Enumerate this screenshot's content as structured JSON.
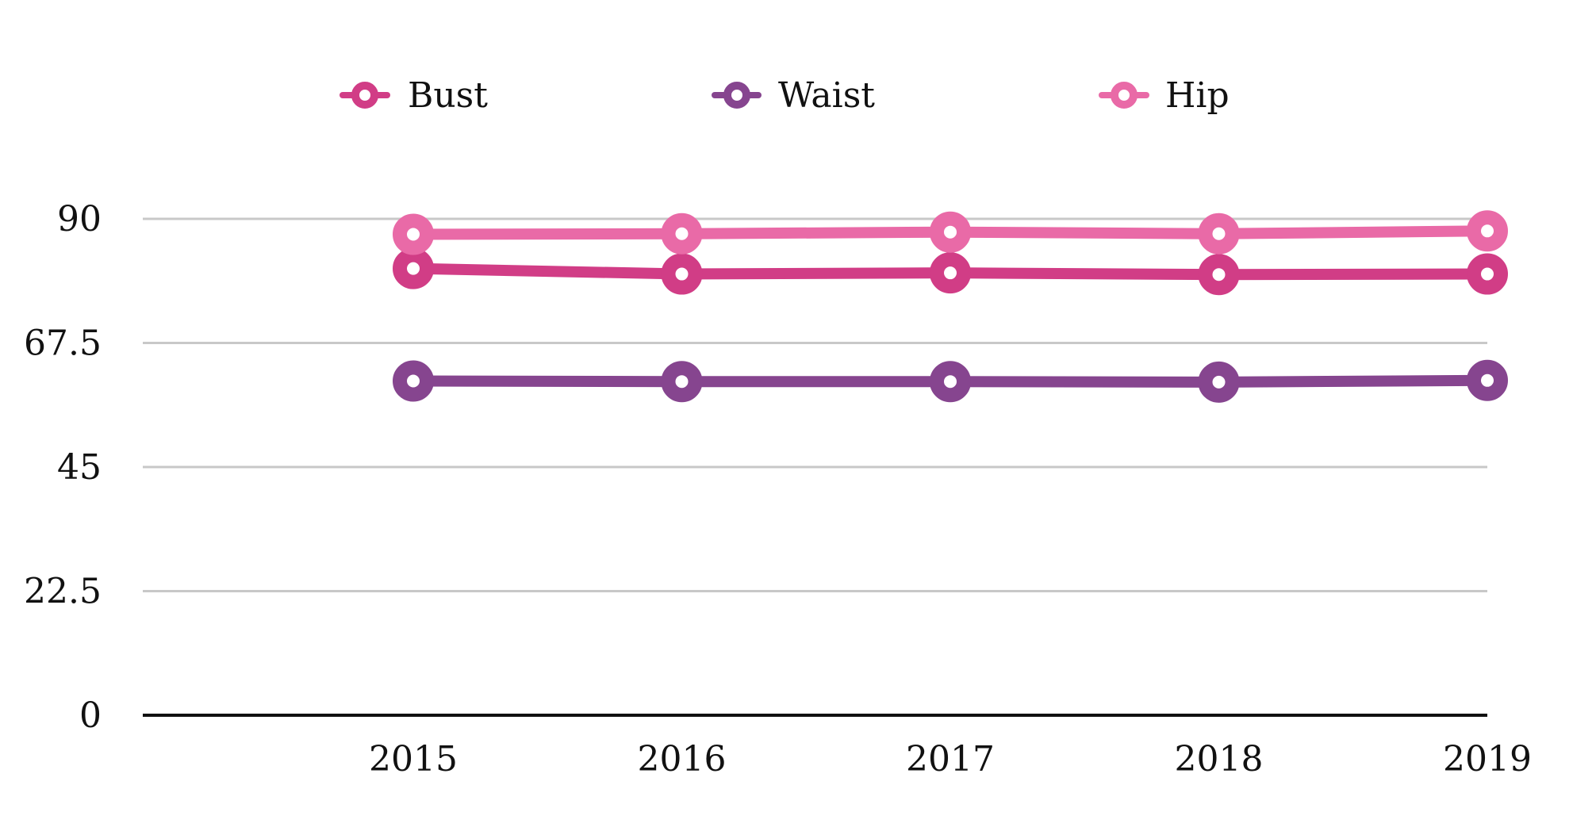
{
  "chart_data": {
    "type": "line",
    "x": [
      "2015",
      "2016",
      "2017",
      "2018",
      "2019"
    ],
    "series": [
      {
        "name": "Bust",
        "color": "#d13d86",
        "values": [
          81,
          80,
          80.2,
          79.9,
          80
        ]
      },
      {
        "name": "Waist",
        "color": "#86458f",
        "values": [
          60.6,
          60.5,
          60.5,
          60.4,
          60.7
        ]
      },
      {
        "name": "Hip",
        "color": "#e96aa7",
        "values": [
          87.2,
          87.3,
          87.6,
          87.3,
          87.8
        ]
      }
    ],
    "y_ticks": [
      "90",
      "67.5",
      "45",
      "22.5",
      "0"
    ],
    "ylim": [
      0,
      90
    ],
    "title": "",
    "xlabel": "",
    "ylabel": "",
    "grid": true,
    "legend_position": "top"
  }
}
